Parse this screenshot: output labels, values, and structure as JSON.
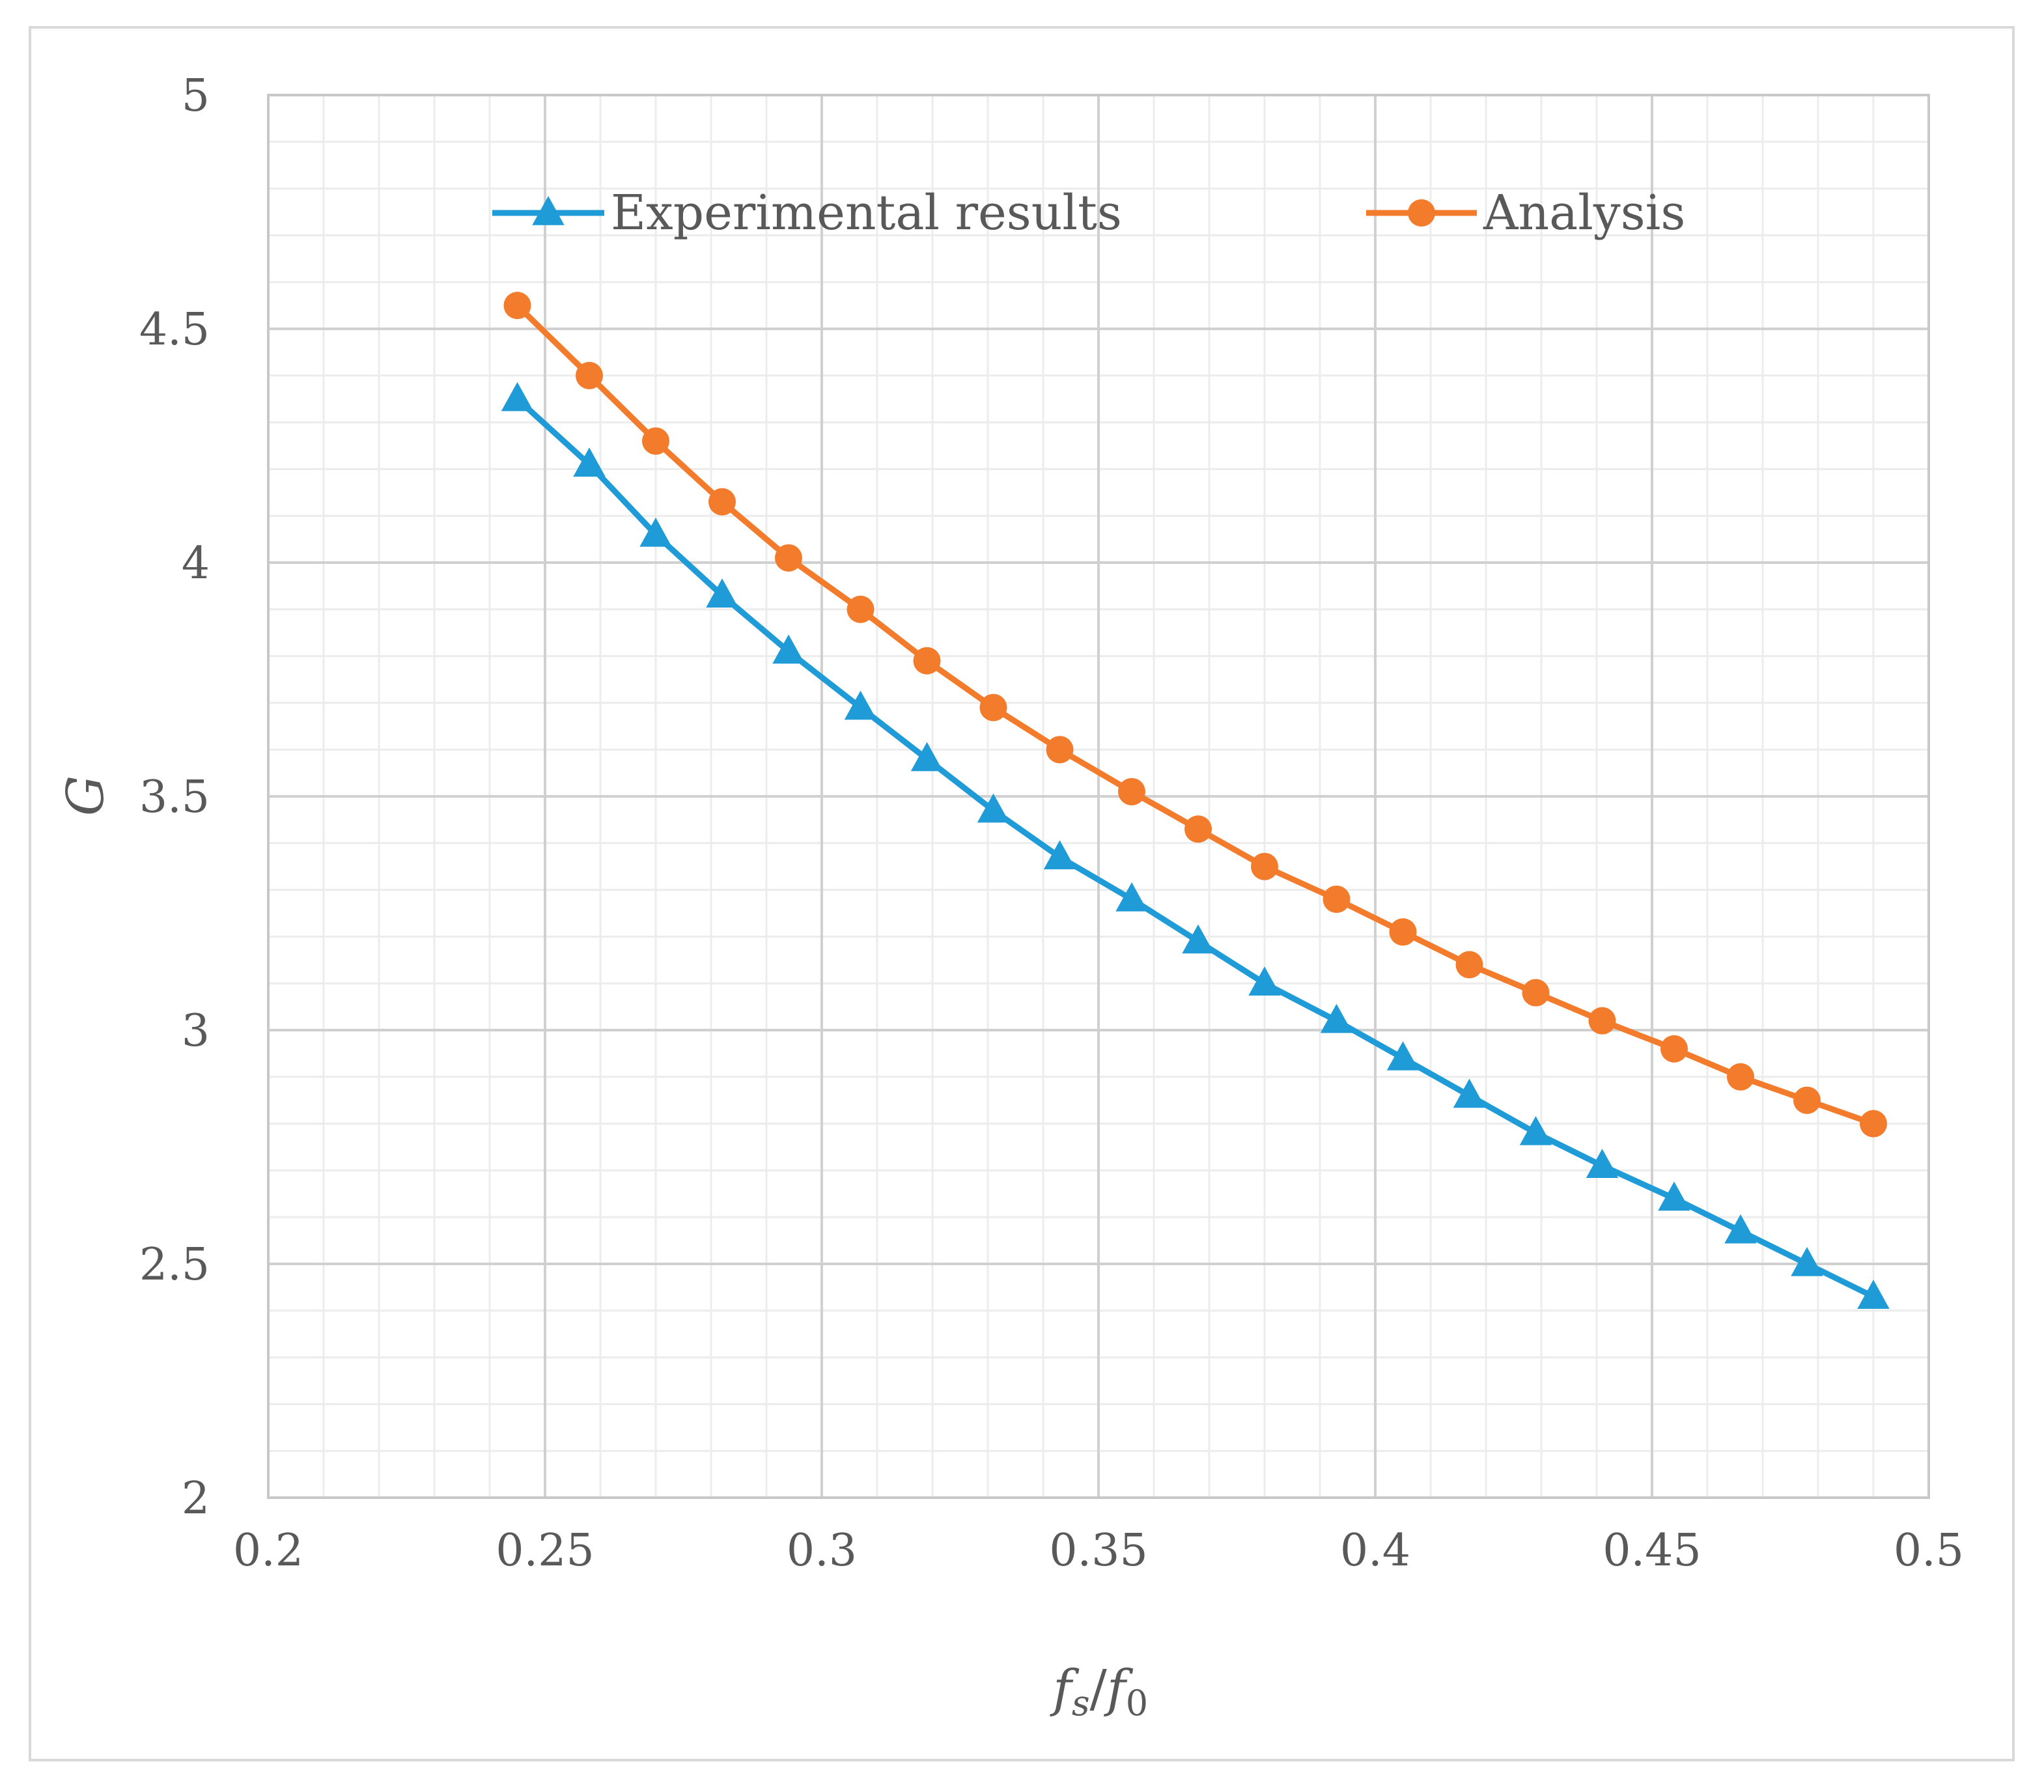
{
  "chart_data": {
    "type": "line",
    "title": "",
    "xlabel": "fs/f0",
    "xlabel_parts": {
      "f1": "f",
      "s": "s",
      "slash": "/",
      "f2": "f",
      "zero": "0"
    },
    "ylabel": "G",
    "xlim": [
      0.2,
      0.5
    ],
    "ylim": [
      2,
      5
    ],
    "x_ticks": [
      "0.2",
      "0.25",
      "0.3",
      "0.35",
      "0.4",
      "0.45",
      "0.5"
    ],
    "y_ticks": [
      "2",
      "2.5",
      "3",
      "3.5",
      "4",
      "4.5",
      "5"
    ],
    "grid": true,
    "legend_position": "top",
    "x": [
      0.245,
      0.258,
      0.27,
      0.282,
      0.294,
      0.307,
      0.319,
      0.331,
      0.343,
      0.356,
      0.368,
      0.38,
      0.393,
      0.405,
      0.417,
      0.429,
      0.441,
      0.454,
      0.466,
      0.478,
      0.49
    ],
    "series": [
      {
        "name": "Experimental results",
        "color": "#1f9bd7",
        "marker": "triangle",
        "values": [
          4.35,
          4.21,
          4.06,
          3.93,
          3.81,
          3.69,
          3.58,
          3.47,
          3.37,
          3.28,
          3.19,
          3.1,
          3.02,
          2.94,
          2.86,
          2.78,
          2.71,
          2.64,
          2.57,
          2.5,
          2.43
        ]
      },
      {
        "name": "Analysis",
        "color": "#f37b2c",
        "marker": "circle",
        "values": [
          4.55,
          4.4,
          4.26,
          4.13,
          4.01,
          3.9,
          3.79,
          3.69,
          3.6,
          3.51,
          3.43,
          3.35,
          3.28,
          3.21,
          3.14,
          3.08,
          3.02,
          2.96,
          2.9,
          2.85,
          2.8
        ]
      }
    ]
  }
}
